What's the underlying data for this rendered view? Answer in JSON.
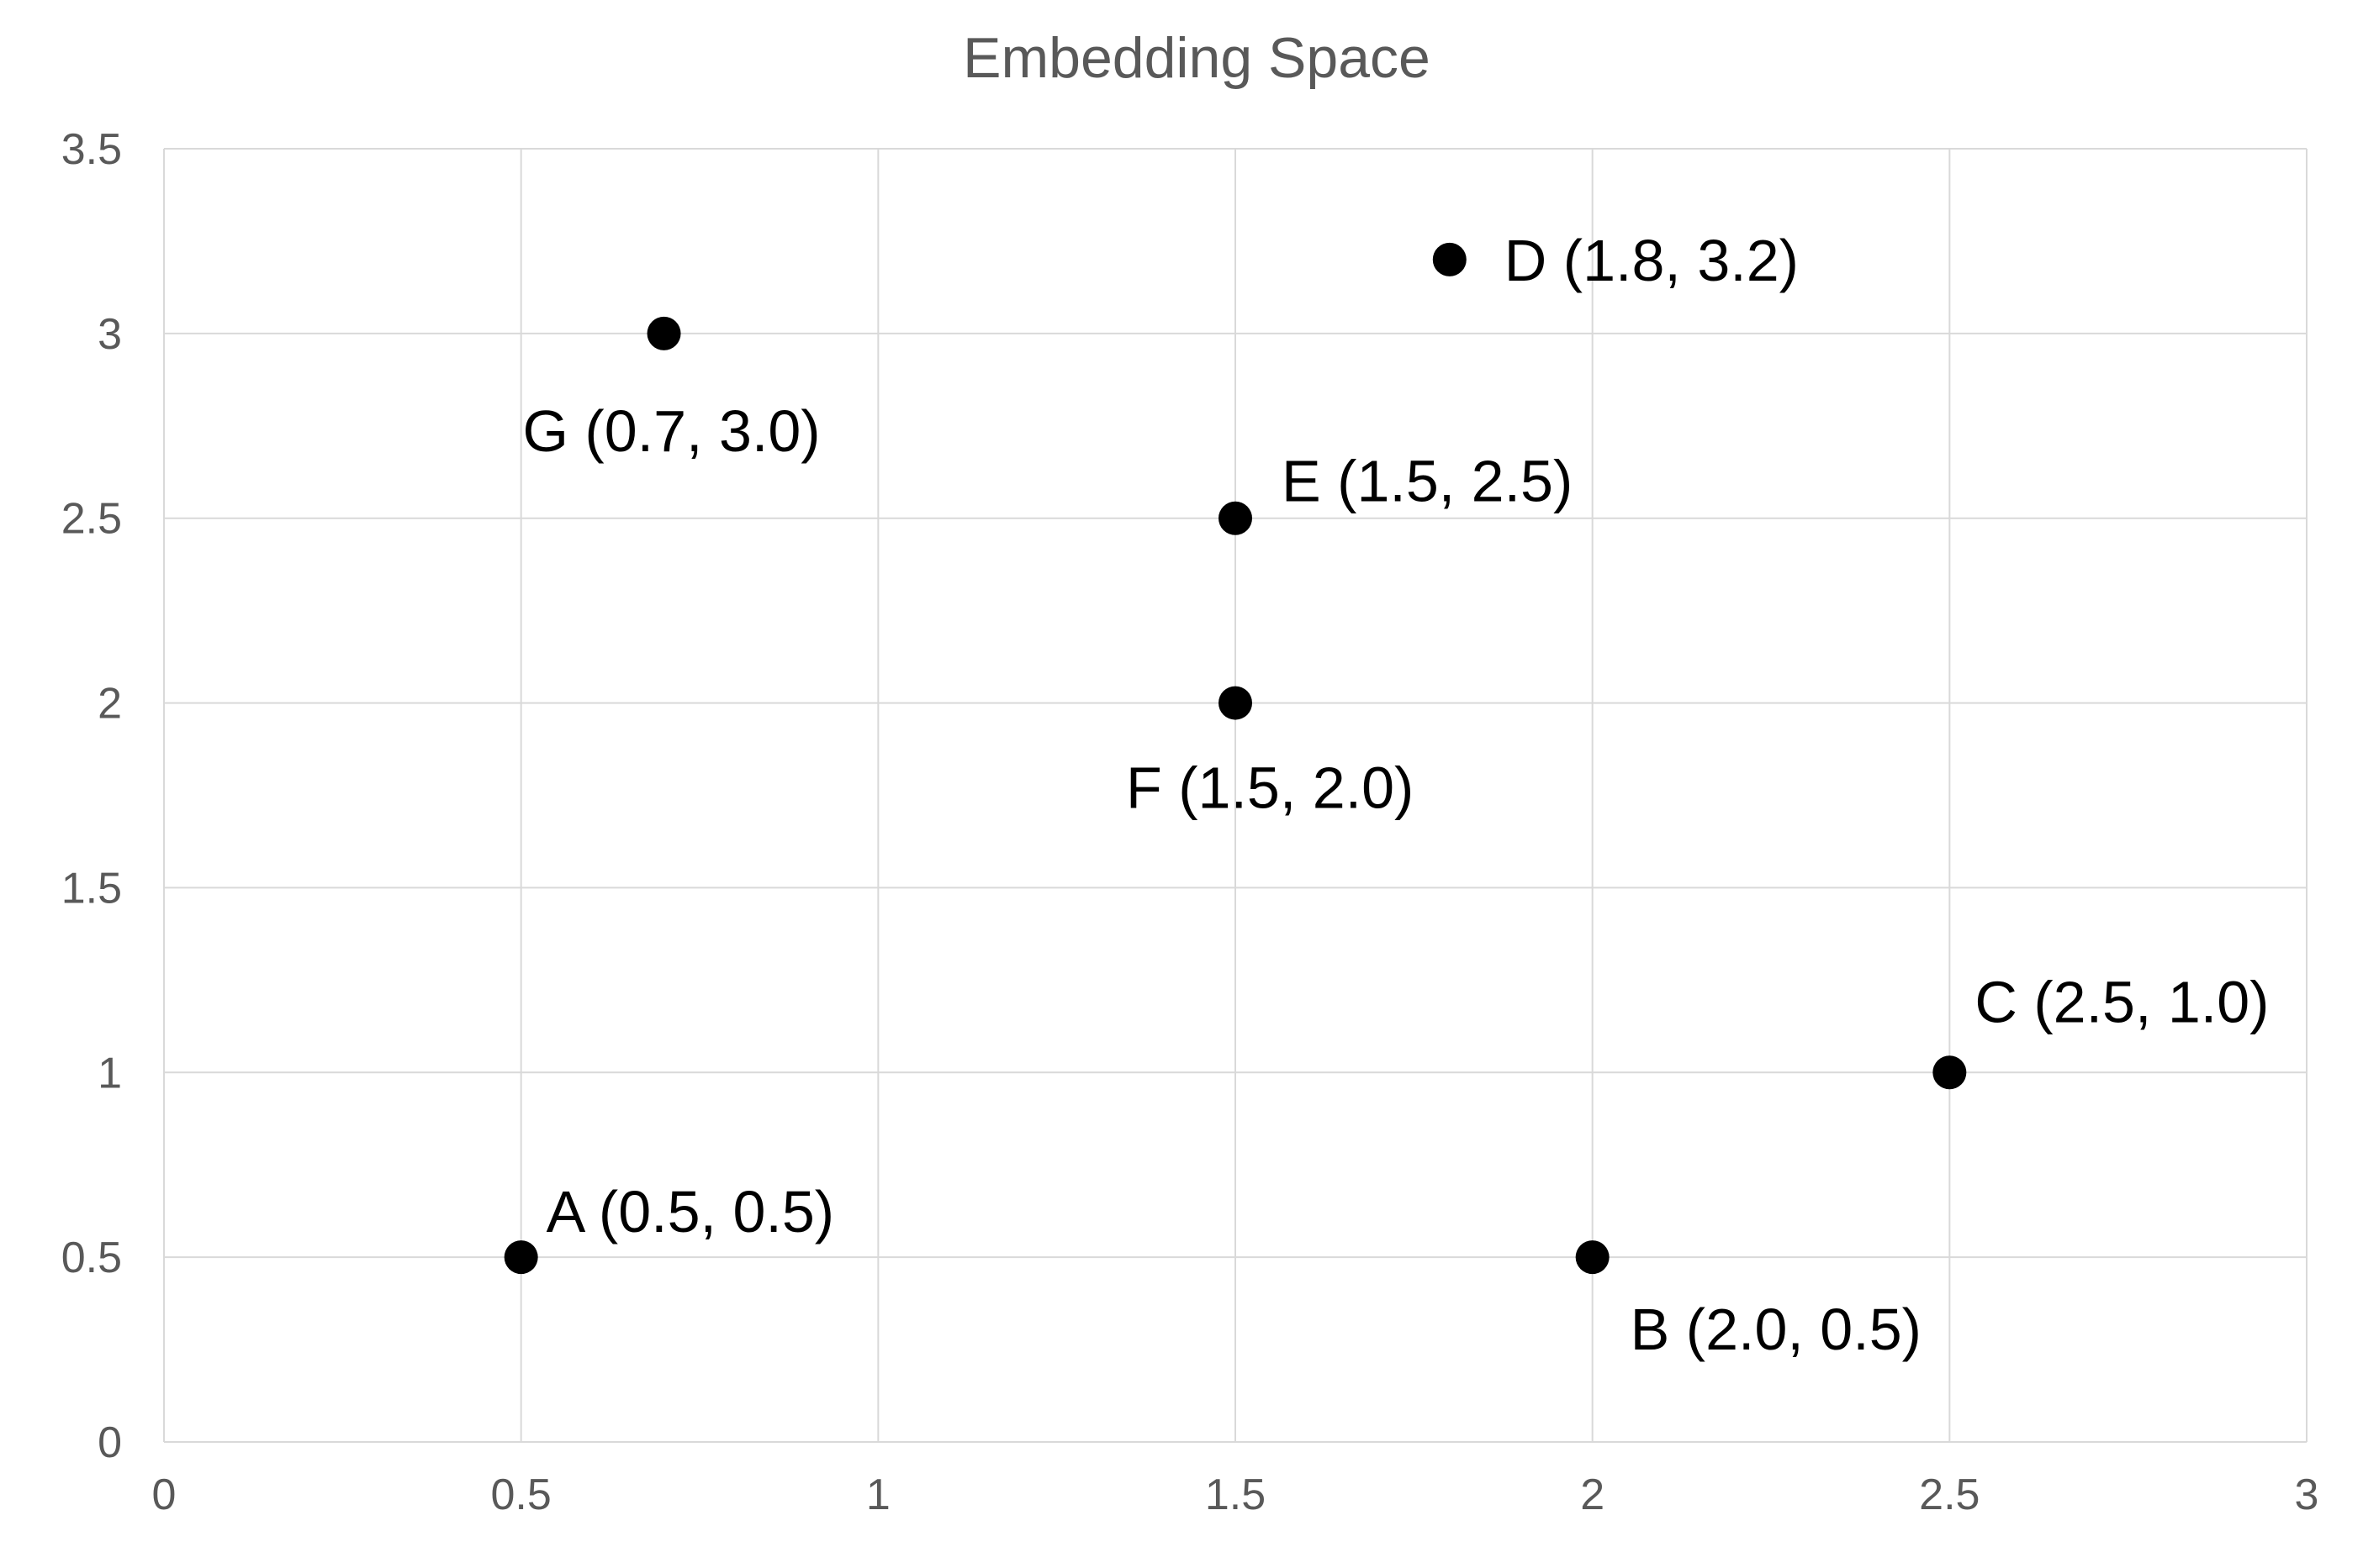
{
  "chart_data": {
    "type": "scatter",
    "title": "Embedding Space",
    "xlabel": "",
    "ylabel": "",
    "xlim": [
      0,
      3
    ],
    "ylim": [
      0,
      3.5
    ],
    "x_ticks": [
      "0",
      "0.5",
      "1",
      "1.5",
      "2",
      "2.5",
      "3"
    ],
    "y_ticks": [
      "0",
      "0.5",
      "1",
      "1.5",
      "2",
      "2.5",
      "3",
      "3.5"
    ],
    "grid": true,
    "legend": "none",
    "point_color": "#000000",
    "grid_color": "#d9d9d9",
    "points": [
      {
        "label": "A (0.5, 0.5)",
        "x": 0.5,
        "y": 0.5
      },
      {
        "label": "B (2.0, 0.5)",
        "x": 2.0,
        "y": 0.5
      },
      {
        "label": "C (2.5, 1.0)",
        "x": 2.5,
        "y": 1.0
      },
      {
        "label": "D (1.8, 3.2)",
        "x": 1.8,
        "y": 3.2
      },
      {
        "label": "E (1.5, 2.5)",
        "x": 1.5,
        "y": 2.5
      },
      {
        "label": "F (1.5, 2.0)",
        "x": 1.5,
        "y": 2.0
      },
      {
        "label": "G (0.7, 3.0)",
        "x": 0.7,
        "y": 3.0
      }
    ]
  }
}
